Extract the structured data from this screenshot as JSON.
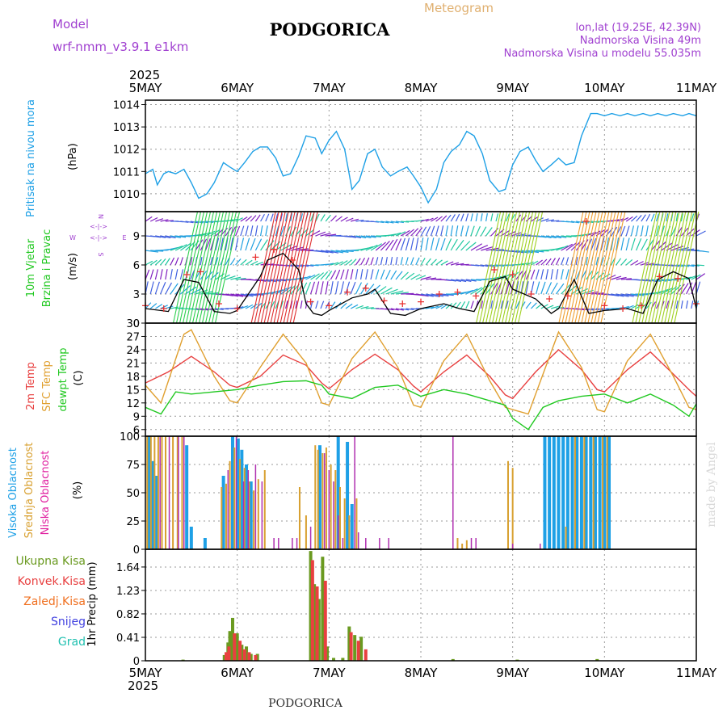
{
  "header": {
    "model_label": "Model",
    "model_name": "wrf-nmm_v3.9.1 e1km",
    "title": "PODGORICA",
    "product": "Meteogram",
    "coords": "lon,lat (19.25E, 42.39N)",
    "elevation": "Nadmorska Visina 49m",
    "model_elevation": "Nadmorska Visina u modelu 55.035m",
    "footer_title": "PODGORICA",
    "credit": "made by Angel",
    "year": "2025"
  },
  "colors": {
    "pressure": "#1ea0e6",
    "wind_speed": "#000000",
    "gust": "#e83030",
    "temp2m": "#e84040",
    "sfc_temp": "#e0a030",
    "dewpt": "#20c820",
    "high_cloud": "#1ea0e6",
    "mid_cloud": "#d8a030",
    "low_cloud": "#b030b0",
    "precip_total": "#6a9a20",
    "precip_conv": "#e84040",
    "precip_frozen": "#f07020",
    "snow": "#4040e0",
    "hail": "#20c0b0",
    "wind_legend": "#a040d0"
  },
  "x_axis": {
    "labels": [
      "5MAY",
      "6MAY",
      "7MAY",
      "8MAY",
      "9MAY",
      "10MAY",
      "11MAY"
    ],
    "range_days": [
      0,
      6
    ]
  },
  "chart_data": [
    {
      "type": "line",
      "id": "pressure",
      "ylabel": "Pritisak na nivou mora",
      "unit": "(hPa)",
      "ylim": [
        1009.2,
        1014.2
      ],
      "yticks": [
        "1010",
        "1011",
        "1012",
        "1013",
        "1014"
      ],
      "series": [
        {
          "x": [
            0,
            0.08,
            0.13,
            0.2,
            0.25,
            0.33,
            0.42,
            0.5,
            0.58,
            0.67,
            0.75,
            0.85,
            0.92,
            1,
            1.08,
            1.17,
            1.25,
            1.33,
            1.42,
            1.5,
            1.58,
            1.67,
            1.75,
            1.85,
            1.92,
            2,
            2.08,
            2.17,
            2.25,
            2.33,
            2.42,
            2.5,
            2.58,
            2.67,
            2.75,
            2.85,
            2.92,
            3,
            3.08,
            3.17,
            3.25,
            3.33,
            3.42,
            3.5,
            3.58,
            3.67,
            3.75,
            3.85,
            3.92,
            4,
            4.08,
            4.17,
            4.25,
            4.33,
            4.42,
            4.5,
            4.58,
            4.67,
            4.75,
            4.85,
            4.92,
            5,
            5.08,
            5.17,
            5.25,
            5.33,
            5.42,
            5.5,
            5.58,
            5.67,
            5.75,
            5.85,
            5.92,
            6
          ],
          "values": [
            1010.9,
            1011.1,
            1010.4,
            1010.9,
            1011.0,
            1010.9,
            1011.1,
            1010.5,
            1009.8,
            1010.0,
            1010.5,
            1011.4,
            1011.2,
            1011.0,
            1011.4,
            1011.9,
            1012.1,
            1012.1,
            1011.6,
            1010.8,
            1010.9,
            1011.7,
            1012.6,
            1012.5,
            1011.8,
            1012.4,
            1012.8,
            1012.0,
            1010.2,
            1010.6,
            1011.8,
            1012.0,
            1011.2,
            1010.8,
            1011.0,
            1011.2,
            1010.8,
            1010.3,
            1009.6,
            1010.2,
            1011.4,
            1011.9,
            1012.2,
            1012.8,
            1012.6,
            1011.8,
            1010.6,
            1010.1,
            1010.2,
            1011.3,
            1011.9,
            1012.1,
            1011.5,
            1011.0,
            1011.3,
            1011.6,
            1011.3,
            1011.4,
            1012.6,
            1013.6,
            1013.6,
            1013.5,
            1013.6,
            1013.5,
            1013.6,
            1013.5,
            1013.6,
            1013.5,
            1013.6,
            1013.5,
            1013.6,
            1013.5,
            1013.6,
            1013.5
          ]
        }
      ]
    },
    {
      "type": "line",
      "id": "wind",
      "ylabel": "10m Vjetar Brzina i Pravac",
      "unit": "(m/s)",
      "ylim": [
        0,
        11.5
      ],
      "yticks": [
        "0",
        "3",
        "6",
        "9"
      ],
      "compass": [
        "N",
        "W",
        "E",
        "S"
      ],
      "series": [
        {
          "name": "speed",
          "x": [
            0,
            0.25,
            0.42,
            0.58,
            0.75,
            0.92,
            1,
            1.25,
            1.33,
            1.5,
            1.67,
            1.75,
            1.83,
            1.92,
            2,
            2.25,
            2.42,
            2.5,
            2.67,
            2.83,
            3,
            3.25,
            3.42,
            3.58,
            3.75,
            3.92,
            4,
            4.25,
            4.42,
            4.5,
            4.67,
            4.83,
            5,
            5.25,
            5.42,
            5.58,
            5.75,
            5.92,
            6
          ],
          "values": [
            1.5,
            1.2,
            4.5,
            4.2,
            1.2,
            1.0,
            1.3,
            4.8,
            6.5,
            7.2,
            5.5,
            2.0,
            1.0,
            0.8,
            1.3,
            2.6,
            3.0,
            3.5,
            1.0,
            0.8,
            1.5,
            2.0,
            1.5,
            1.2,
            4.3,
            4.8,
            3.5,
            2.5,
            1.0,
            1.5,
            4.5,
            1.0,
            1.3,
            1.5,
            1.0,
            4.5,
            5.3,
            4.6,
            1.5
          ]
        },
        {
          "name": "gust",
          "x": [
            0,
            0.2,
            0.45,
            0.6,
            0.8,
            1,
            1.2,
            1.4,
            1.6,
            1.8,
            2,
            2.2,
            2.4,
            2.6,
            2.8,
            3,
            3.2,
            3.4,
            3.6,
            3.8,
            4,
            4.2,
            4.4,
            4.6,
            4.8,
            5,
            5.2,
            5.4,
            5.6,
            5.8,
            6
          ],
          "values": [
            1.8,
            1.5,
            5.0,
            5.3,
            2.0,
            1.5,
            6.8,
            7.6,
            6.5,
            2.2,
            1.8,
            3.2,
            3.6,
            2.3,
            2.0,
            2.2,
            3.0,
            3.2,
            2.8,
            5.5,
            5.0,
            3.0,
            2.5,
            2.8,
            10.5,
            1.8,
            1.5,
            1.8,
            4.8,
            4.6,
            2.0
          ]
        }
      ]
    },
    {
      "type": "line",
      "id": "temperature",
      "ylabel": "2m Temp | SFC Temp | dewpt Temp",
      "unit": "(C)",
      "ylim": [
        4.5,
        30
      ],
      "yticks": [
        "6",
        "9",
        "12",
        "15",
        "18",
        "21",
        "24",
        "27",
        "30"
      ],
      "series": [
        {
          "name": "2m Temp",
          "x": [
            0,
            0.25,
            0.5,
            0.75,
            0.92,
            1,
            1.25,
            1.5,
            1.75,
            1.92,
            2,
            2.25,
            2.5,
            2.75,
            2.92,
            3,
            3.25,
            3.5,
            3.75,
            3.92,
            4,
            4.25,
            4.5,
            4.75,
            4.92,
            5,
            5.25,
            5.5,
            5.75,
            5.92,
            6
          ],
          "values": [
            16.5,
            19.0,
            22.5,
            19.0,
            16.0,
            15.5,
            18.0,
            22.8,
            20.5,
            16.5,
            15.2,
            19.5,
            23.0,
            19.5,
            15.8,
            14.5,
            19.0,
            22.8,
            18.0,
            13.8,
            13.0,
            19.0,
            24.0,
            19.5,
            15.0,
            14.5,
            19.5,
            23.5,
            18.5,
            15.0,
            13.5
          ]
        },
        {
          "name": "SFC Temp",
          "x": [
            0,
            0.17,
            0.42,
            0.5,
            0.75,
            0.92,
            1,
            1.25,
            1.5,
            1.75,
            1.92,
            2,
            2.25,
            2.5,
            2.75,
            2.92,
            3,
            3.25,
            3.5,
            3.75,
            3.92,
            4,
            4.17,
            4.5,
            4.75,
            4.92,
            5,
            5.25,
            5.5,
            5.75,
            5.92,
            6
          ],
          "values": [
            16.0,
            12.0,
            27.5,
            28.5,
            18.0,
            12.5,
            12.0,
            20.0,
            27.5,
            21.0,
            12.0,
            11.5,
            22.0,
            28.0,
            20.0,
            11.5,
            11.0,
            21.5,
            27.5,
            17.0,
            11.0,
            10.5,
            9.5,
            28.0,
            20.0,
            10.5,
            10.0,
            21.5,
            27.5,
            18.0,
            11.0,
            10.5
          ]
        },
        {
          "name": "dewpt Temp",
          "x": [
            0,
            0.17,
            0.33,
            0.5,
            0.75,
            1,
            1.25,
            1.5,
            1.75,
            1.92,
            2,
            2.25,
            2.5,
            2.75,
            3,
            3.25,
            3.5,
            3.75,
            3.92,
            4,
            4.17,
            4.33,
            4.5,
            4.75,
            5,
            5.25,
            5.5,
            5.75,
            5.92,
            6
          ],
          "values": [
            11.0,
            9.5,
            14.5,
            14.0,
            14.5,
            15.0,
            16.0,
            16.8,
            17.0,
            16.0,
            14.0,
            13.0,
            15.5,
            16.0,
            13.5,
            15.0,
            14.0,
            12.5,
            11.5,
            8.5,
            6.0,
            11.0,
            12.5,
            13.5,
            14.0,
            12.0,
            14.0,
            11.5,
            9.0,
            11.8
          ]
        }
      ]
    },
    {
      "type": "bar",
      "id": "clouds",
      "ylabel": "Visoka Oblacnost | Srednja Oblacnost | Niska Oblacnost",
      "unit": "(%)",
      "ylim": [
        0,
        100
      ],
      "yticks": [
        "0",
        "25",
        "50",
        "75",
        "100"
      ],
      "series": [
        {
          "name": "Visoka Oblacnost",
          "x": [
            0.04,
            0.08,
            0.12,
            0.45,
            0.5,
            0.65,
            0.85,
            0.95,
            1.01,
            1.05,
            1.1,
            1.15,
            1.9,
            2.1,
            2.2,
            2.25,
            4.35,
            4.4,
            4.45,
            4.5,
            4.55,
            4.6,
            4.65,
            4.7,
            4.75,
            4.8,
            4.85,
            4.9,
            4.95,
            5.0,
            5.05
          ],
          "values": [
            100,
            78,
            65,
            92,
            20,
            10,
            65,
            100,
            98,
            88,
            75,
            60,
            92,
            100,
            95,
            40,
            100,
            100,
            100,
            100,
            100,
            100,
            100,
            100,
            100,
            100,
            100,
            100,
            100,
            100,
            100
          ]
        },
        {
          "name": "Srednja Oblacnost",
          "x": [
            0.02,
            0.06,
            0.1,
            0.14,
            0.18,
            0.22,
            0.3,
            0.35,
            0.4,
            0.83,
            0.88,
            0.92,
            0.97,
            1.03,
            1.08,
            1.13,
            1.18,
            1.23,
            1.3,
            1.68,
            1.75,
            1.85,
            1.88,
            1.93,
            1.97,
            2.02,
            2.07,
            2.12,
            2.17,
            2.22,
            2.3,
            3.4,
            3.45,
            3.5,
            3.95,
            4.0,
            4.58,
            4.68,
            4.78,
            4.88,
            4.98,
            5.03
          ],
          "values": [
            100,
            100,
            100,
            100,
            100,
            100,
            100,
            100,
            100,
            55,
            58,
            78,
            90,
            80,
            72,
            60,
            52,
            62,
            70,
            55,
            30,
            92,
            88,
            85,
            90,
            75,
            70,
            55,
            45,
            30,
            45,
            10,
            5,
            8,
            78,
            72,
            20,
            100,
            100,
            100,
            100,
            100
          ]
        },
        {
          "name": "Niska Oblacnost",
          "x": [
            0.16,
            0.26,
            0.36,
            0.42,
            0.9,
            0.99,
            1.07,
            1.12,
            1.2,
            1.27,
            1.4,
            1.45,
            1.6,
            1.65,
            1.8,
            1.95,
            2.0,
            2.05,
            2.1,
            2.15,
            2.28,
            2.32,
            2.4,
            2.55,
            2.65,
            3.35,
            3.55,
            3.6,
            4.0,
            4.3
          ],
          "values": [
            100,
            100,
            100,
            100,
            70,
            100,
            60,
            70,
            75,
            60,
            10,
            10,
            10,
            10,
            20,
            85,
            70,
            60,
            30,
            10,
            100,
            15,
            10,
            10,
            10,
            100,
            10,
            10,
            5,
            5
          ]
        }
      ]
    },
    {
      "type": "bar",
      "id": "precip",
      "ylabel": "1hr Precip (mm)",
      "unit": "(mm)",
      "ylim": [
        0,
        1.95
      ],
      "yticks": [
        "0",
        "0.41",
        "0.82",
        "1.23",
        "1.64"
      ],
      "legend": [
        "Ukupna Kisa",
        "Konvek.Kisa",
        "Zaledj.Kisa",
        "Snijeg",
        "Grad"
      ],
      "series": [
        {
          "name": "Ukupna Kisa",
          "x": [
            0.41,
            0.86,
            0.9,
            0.92,
            0.95,
            1.0,
            1.05,
            1.1,
            1.15,
            1.22,
            1.8,
            1.84,
            1.89,
            1.93,
            1.98,
            2.05,
            2.15,
            2.22,
            2.28,
            2.35,
            3.35,
            4.05,
            4.92
          ],
          "values": [
            0.02,
            0.1,
            0.32,
            0.52,
            0.75,
            0.48,
            0.28,
            0.25,
            0.12,
            0.12,
            1.92,
            1.34,
            1.08,
            1.82,
            0.25,
            0.05,
            0.05,
            0.6,
            0.45,
            0.42,
            0.03,
            0.02,
            0.03
          ]
        },
        {
          "name": "Konvek.Kisa",
          "x": [
            0.88,
            0.91,
            0.97,
            1.03,
            1.08,
            1.13,
            1.2,
            1.82,
            1.87,
            1.96,
            2.24,
            2.32,
            2.4
          ],
          "values": [
            0.15,
            0.25,
            0.48,
            0.35,
            0.2,
            0.15,
            0.1,
            1.76,
            1.3,
            1.4,
            0.5,
            0.35,
            0.2
          ]
        }
      ]
    }
  ]
}
